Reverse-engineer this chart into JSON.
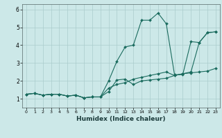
{
  "title": "",
  "xlabel": "Humidex (Indice chaleur)",
  "xlim": [
    -0.5,
    23.5
  ],
  "ylim": [
    0.5,
    6.3
  ],
  "xticks": [
    0,
    1,
    2,
    3,
    4,
    5,
    6,
    7,
    8,
    9,
    10,
    11,
    12,
    13,
    14,
    15,
    16,
    17,
    18,
    19,
    20,
    21,
    22,
    23
  ],
  "yticks": [
    1,
    2,
    3,
    4,
    5,
    6
  ],
  "bg_color": "#cce8e8",
  "line_color": "#1a6b5e",
  "grid_color": "#aacccc",
  "series": [
    {
      "x": [
        0,
        1,
        2,
        3,
        4,
        5,
        6,
        7,
        8,
        9,
        10,
        11,
        12,
        13,
        14,
        15,
        16,
        17,
        18,
        19,
        20,
        21,
        22,
        23
      ],
      "y": [
        1.25,
        1.3,
        1.2,
        1.25,
        1.25,
        1.15,
        1.2,
        1.05,
        1.1,
        1.1,
        1.4,
        2.05,
        2.1,
        1.8,
        2.0,
        2.05,
        2.1,
        2.15,
        2.3,
        2.4,
        2.45,
        2.5,
        2.55,
        2.7
      ]
    },
    {
      "x": [
        0,
        1,
        2,
        3,
        4,
        5,
        6,
        7,
        8,
        9,
        10,
        11,
        12,
        13,
        14,
        15,
        16,
        17,
        18,
        19,
        20,
        21,
        22,
        23
      ],
      "y": [
        1.25,
        1.3,
        1.2,
        1.25,
        1.25,
        1.15,
        1.2,
        1.05,
        1.1,
        1.1,
        2.0,
        3.1,
        3.9,
        4.0,
        5.4,
        5.4,
        5.8,
        5.2,
        2.35,
        2.35,
        4.2,
        4.15,
        4.7,
        4.75
      ]
    },
    {
      "x": [
        0,
        1,
        2,
        3,
        4,
        5,
        6,
        7,
        8,
        9,
        10,
        11,
        12,
        13,
        14,
        15,
        16,
        17,
        18,
        19,
        20,
        21,
        22,
        23
      ],
      "y": [
        1.25,
        1.3,
        1.2,
        1.25,
        1.25,
        1.15,
        1.2,
        1.05,
        1.1,
        1.1,
        1.6,
        1.8,
        1.9,
        2.1,
        2.2,
        2.3,
        2.4,
        2.5,
        2.3,
        2.4,
        2.5,
        4.15,
        4.7,
        4.75
      ]
    }
  ]
}
